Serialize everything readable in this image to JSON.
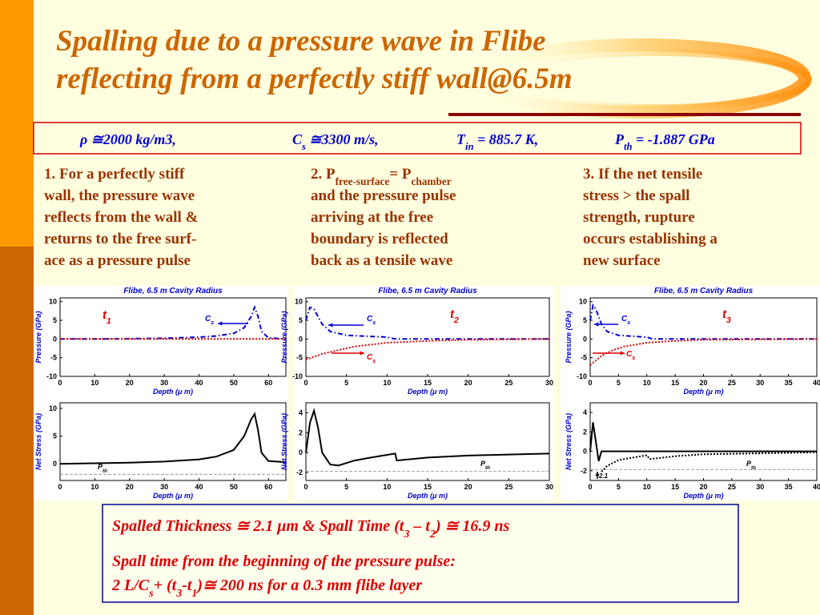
{
  "title": [
    "Spalling due to a pressure wave in Flibe",
    "reflecting from a perfectly stiff wall@6.5m"
  ],
  "params": [
    [
      {
        "text": "ρ ≅2000 kg/m3,"
      }
    ],
    [
      {
        "text": "C"
      },
      {
        "sub": "s"
      },
      {
        "text": " ≅3300 m/s,"
      }
    ],
    [
      {
        "text": "T"
      },
      {
        "sub": "in"
      },
      {
        "text": " = 885.7 K,"
      }
    ],
    [
      {
        "text": "P"
      },
      {
        "sub": "th"
      },
      {
        "text": " = -1.887 GPa"
      }
    ]
  ],
  "columns": [
    [
      [
        {
          "text": "1. For a perfectly stiff"
        }
      ],
      [
        {
          "text": "wall, the pressure wave"
        }
      ],
      [
        {
          "text": "reflects from the wall &"
        }
      ],
      [
        {
          "text": "returns to the free surf-"
        }
      ],
      [
        {
          "text": "ace as a pressure pulse"
        }
      ]
    ],
    [
      [
        {
          "text": "2. P"
        },
        {
          "sub": "free-surface"
        },
        {
          "text": "= P"
        },
        {
          "sub": "chamber"
        }
      ],
      [
        {
          "text": "and the pressure pulse"
        }
      ],
      [
        {
          "text": "arriving at the free"
        }
      ],
      [
        {
          "text": "boundary is reflected"
        }
      ],
      [
        {
          "text": "back as a tensile wave"
        }
      ]
    ],
    [
      [
        {
          "text": "3. If the net tensile"
        }
      ],
      [
        {
          "text": "stress > the spall"
        }
      ],
      [
        {
          "text": "strength, rupture"
        }
      ],
      [
        {
          "text": "occurs establishing a"
        }
      ],
      [
        {
          "text": "new surface"
        }
      ]
    ]
  ],
  "chart_data": [
    {
      "type": "line",
      "title": "Flibe, 6.5 m Cavity Radius",
      "ylabel": "Pressure (GPa)",
      "xlabel": "Depth (μ m)",
      "xlim": [
        0,
        65
      ],
      "xticks": [
        0,
        10,
        20,
        30,
        40,
        50,
        60
      ],
      "ylim": [
        -10,
        11
      ],
      "yticks": [
        -10,
        -5,
        0,
        5,
        10
      ],
      "series": [
        {
          "color": "#0000cc",
          "dash": "dashdot",
          "x": [
            0,
            10,
            20,
            30,
            40,
            45,
            50,
            53,
            55,
            56,
            57,
            58,
            60,
            65
          ],
          "values": [
            0,
            0,
            0.1,
            0.2,
            0.5,
            0.8,
            1.5,
            3,
            6,
            8.5,
            6,
            2,
            0.3,
            0
          ]
        },
        {
          "color": "#dd0000",
          "dash": "dot",
          "x": [
            0,
            65
          ],
          "values": [
            0,
            0
          ]
        }
      ],
      "annotations": [
        {
          "text": "t",
          "sub": "1"
        },
        {
          "text": "C",
          "sub": "s"
        }
      ]
    },
    {
      "type": "line",
      "ylabel": "Net Stress (GPa)",
      "xlabel": "Depth (μ m)",
      "xlim": [
        0,
        65
      ],
      "xticks": [
        0,
        10,
        20,
        30,
        40,
        50,
        60
      ],
      "ylim": [
        -3,
        11
      ],
      "yticks": [
        0,
        5,
        10
      ],
      "threshold": -1.887,
      "series": [
        {
          "color": "#000000",
          "dash": "solid",
          "x": [
            0,
            10,
            20,
            30,
            40,
            45,
            50,
            53,
            55,
            56,
            57,
            58,
            60,
            65
          ],
          "values": [
            0,
            0.1,
            0.2,
            0.4,
            0.8,
            1.3,
            2.5,
            5,
            8,
            9,
            6,
            2,
            0.5,
            0.3
          ]
        }
      ],
      "annotations": [
        {
          "text": "P",
          "sub": "th"
        }
      ]
    },
    {
      "type": "line",
      "title": "Flibe, 6.5 m Cavity Radius",
      "ylabel": "Pressure (GPa)",
      "xlabel": "Depth (μ m)",
      "xlim": [
        0,
        30
      ],
      "xticks": [
        0,
        5,
        10,
        15,
        20,
        25,
        30
      ],
      "ylim": [
        -10,
        11
      ],
      "yticks": [
        -10,
        -5,
        0,
        5,
        10
      ],
      "series": [
        {
          "color": "#0000cc",
          "dash": "dashdot",
          "x": [
            0,
            0.5,
            1,
            2,
            3,
            5,
            8,
            10,
            11,
            12,
            30
          ],
          "values": [
            5,
            8.5,
            8,
            4,
            2,
            1,
            0.7,
            0.5,
            0,
            0,
            0
          ]
        },
        {
          "color": "#dd0000",
          "dash": "dot",
          "x": [
            0,
            2,
            4,
            6,
            10,
            15,
            20,
            30
          ],
          "values": [
            -5.5,
            -4,
            -3,
            -2,
            -1,
            -0.5,
            -0.2,
            0
          ]
        }
      ],
      "annotations": [
        {
          "text": "C",
          "sub": "s"
        },
        {
          "text": "t",
          "sub": "2"
        },
        {
          "text": "C",
          "sub": "s"
        }
      ]
    },
    {
      "type": "line",
      "ylabel": "Net Stress (GPa)",
      "xlabel": "Depth (μ m)",
      "xlim": [
        0,
        30
      ],
      "xticks": [
        0,
        5,
        10,
        15,
        20,
        25,
        30
      ],
      "ylim": [
        -2.8,
        5
      ],
      "yticks": [
        -2,
        0,
        2,
        4
      ],
      "threshold": -1.887,
      "series": [
        {
          "color": "#000000",
          "dash": "solid",
          "x": [
            0,
            0.5,
            1,
            1.5,
            2,
            3,
            4,
            6,
            8,
            11,
            11.2,
            15,
            20,
            30
          ],
          "values": [
            0,
            3,
            4.2,
            2.5,
            0,
            -1.2,
            -1.3,
            -0.8,
            -0.5,
            -0.1,
            -0.8,
            -0.5,
            -0.3,
            -0.1
          ]
        }
      ],
      "annotations": [
        {
          "text": "P",
          "sub": "th"
        }
      ]
    },
    {
      "type": "line",
      "title": "Flibe, 6.5 m Cavity Radius",
      "ylabel": "Pressure (GPa)",
      "xlabel": "Depth (μ m)",
      "xlim": [
        0,
        40
      ],
      "xticks": [
        0,
        5,
        10,
        15,
        20,
        25,
        30,
        35,
        40
      ],
      "ylim": [
        -10,
        11
      ],
      "yticks": [
        -10,
        -5,
        0,
        5,
        10
      ],
      "series": [
        {
          "color": "#0000cc",
          "dash": "dashdot",
          "x": [
            0,
            0.5,
            1,
            2,
            3,
            5,
            8,
            10,
            11,
            12,
            40
          ],
          "values": [
            5,
            9,
            8,
            4,
            2,
            1,
            0.7,
            0.5,
            0,
            0,
            0
          ]
        },
        {
          "color": "#dd0000",
          "dash": "dot",
          "x": [
            0,
            2,
            4,
            6,
            10,
            15,
            20,
            40
          ],
          "values": [
            -7,
            -4.5,
            -3,
            -2,
            -1,
            -0.5,
            -0.2,
            0
          ]
        }
      ],
      "annotations": [
        {
          "text": "C",
          "sub": "s"
        },
        {
          "text": "t",
          "sub": "3"
        },
        {
          "text": "C",
          "sub": "s"
        }
      ]
    },
    {
      "type": "line",
      "ylabel": "Net Stress (GPa)",
      "xlabel": "Depth (μ m)",
      "xlim": [
        0,
        40
      ],
      "xticks": [
        0,
        5,
        10,
        15,
        20,
        25,
        30,
        35,
        40
      ],
      "ylim": [
        -3,
        5
      ],
      "yticks": [
        -2,
        0,
        2,
        4
      ],
      "threshold": -1.887,
      "series": [
        {
          "color": "#000000",
          "dash": "solid",
          "x": [
            0,
            0.5,
            1,
            1.5,
            2,
            40
          ],
          "values": [
            0,
            3,
            1,
            -1,
            0,
            0
          ]
        },
        {
          "color": "#000000",
          "dash": "dot",
          "x": [
            2,
            3,
            5,
            8,
            10,
            10.5,
            15,
            20,
            40
          ],
          "values": [
            -2.1,
            -1.5,
            -0.9,
            -0.6,
            -0.4,
            -0.8,
            -0.5,
            -0.3,
            -0.1
          ]
        }
      ],
      "annotations": [
        {
          "text": "P",
          "sub": "th"
        },
        {
          "text": "2.1"
        }
      ]
    }
  ],
  "summary": [
    [
      {
        "text": "Spalled Thickness ≅ 2.1 μm & Spall Time (t"
      },
      {
        "sub": "3"
      },
      {
        "text": " – t"
      },
      {
        "sub": "2"
      },
      {
        "text": ") ≅ 16.9 ns"
      }
    ],
    [
      {
        "text": "Spall time from the beginning of the pressure pulse:"
      }
    ],
    [
      {
        "text": "2 L/C"
      },
      {
        "sub": "s"
      },
      {
        "text": "+ (t"
      },
      {
        "sub": "3"
      },
      {
        "text": "-t"
      },
      {
        "sub": "1"
      },
      {
        "text": ")≅ 200 ns for a 0.3 mm flibe layer"
      }
    ]
  ]
}
